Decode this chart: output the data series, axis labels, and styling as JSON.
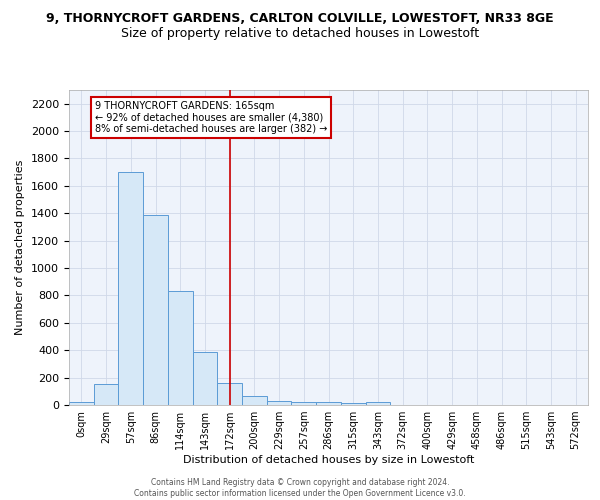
{
  "title": "9, THORNYCROFT GARDENS, CARLTON COLVILLE, LOWESTOFT, NR33 8GE",
  "subtitle": "Size of property relative to detached houses in Lowestoft",
  "xlabel": "Distribution of detached houses by size in Lowestoft",
  "ylabel": "Number of detached properties",
  "categories": [
    "0sqm",
    "29sqm",
    "57sqm",
    "86sqm",
    "114sqm",
    "143sqm",
    "172sqm",
    "200sqm",
    "229sqm",
    "257sqm",
    "286sqm",
    "315sqm",
    "343sqm",
    "372sqm",
    "400sqm",
    "429sqm",
    "458sqm",
    "486sqm",
    "515sqm",
    "543sqm",
    "572sqm"
  ],
  "values": [
    20,
    155,
    1700,
    1390,
    835,
    390,
    160,
    65,
    30,
    25,
    25,
    15,
    20,
    0,
    0,
    0,
    0,
    0,
    0,
    0,
    0
  ],
  "bar_color": "#d6e8f7",
  "bar_edge_color": "#5b9bd5",
  "vline_x_index": 6,
  "vline_color": "#cc0000",
  "annotation_text": "9 THORNYCROFT GARDENS: 165sqm\n← 92% of detached houses are smaller (4,380)\n8% of semi-detached houses are larger (382) →",
  "annotation_box_color": "#cc0000",
  "ylim": [
    0,
    2300
  ],
  "yticks": [
    0,
    200,
    400,
    600,
    800,
    1000,
    1200,
    1400,
    1600,
    1800,
    2000,
    2200
  ],
  "grid_color": "#d0d8e8",
  "bg_color": "#eef3fb",
  "footer_line1": "Contains HM Land Registry data © Crown copyright and database right 2024.",
  "footer_line2": "Contains public sector information licensed under the Open Government Licence v3.0.",
  "title_fontsize": 9,
  "subtitle_fontsize": 9,
  "annotation_fontsize": 7,
  "ylabel_fontsize": 8,
  "xlabel_fontsize": 8,
  "ytick_fontsize": 8,
  "xtick_fontsize": 7
}
